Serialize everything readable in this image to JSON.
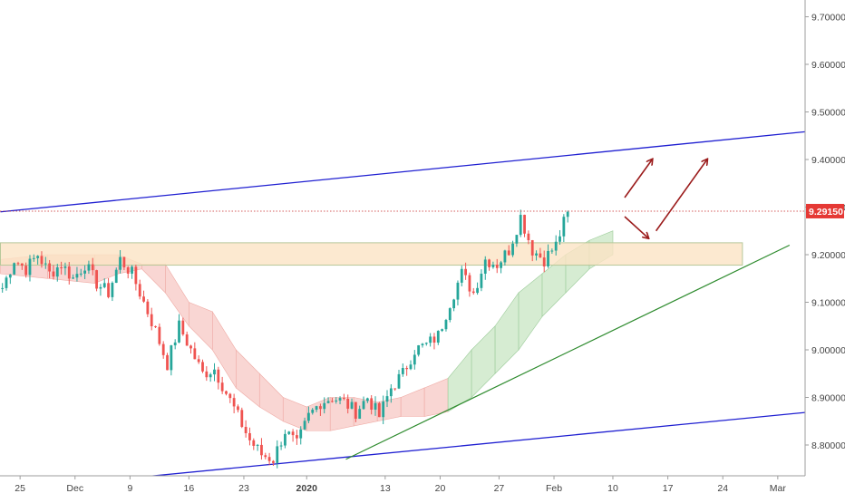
{
  "colors": {
    "up": "#26a69a",
    "down": "#ef5350",
    "channel": "#1f1fd1",
    "trendline": "#2e8b2e",
    "arrow": "#9b1c1c",
    "price_line": "#c62828",
    "price_label_bg": "#e53935",
    "zone_fill": "#fbe3c4",
    "zone_stroke": "#b7c89a",
    "kumo_bull": "#d6ecd2",
    "kumo_bear": "#f9d6d3",
    "axis_text": "#444444",
    "axis_line": "#9e9e9e"
  },
  "chart_data": {
    "type": "candlestick",
    "instrument_note": "",
    "ylim": [
      8.72,
      9.72
    ],
    "y_ticks": [
      "9.70000",
      "9.60000",
      "9.50000",
      "9.40000",
      "9.30000",
      "9.20000",
      "9.10000",
      "9.00000",
      "8.90000",
      "8.80000"
    ],
    "x_ticks": [
      {
        "label": "25",
        "bold": false
      },
      {
        "label": "Dec",
        "bold": false
      },
      {
        "label": "9",
        "bold": false
      },
      {
        "label": "16",
        "bold": false
      },
      {
        "label": "23",
        "bold": false
      },
      {
        "label": "2020",
        "bold": true
      },
      {
        "label": "13",
        "bold": false
      },
      {
        "label": "20",
        "bold": false
      },
      {
        "label": "27",
        "bold": false
      },
      {
        "label": "Feb",
        "bold": false
      },
      {
        "label": "10",
        "bold": false
      },
      {
        "label": "17",
        "bold": false
      },
      {
        "label": "24",
        "bold": false
      },
      {
        "label": "Mar",
        "bold": false
      }
    ],
    "last_price": "9.29150",
    "last_price_value": 9.2915,
    "price_path": [
      [
        0,
        9.13
      ],
      [
        3,
        9.19
      ],
      [
        6,
        9.17
      ],
      [
        9,
        9.2
      ],
      [
        12,
        9.16
      ],
      [
        15,
        9.18
      ],
      [
        18,
        9.15
      ],
      [
        21,
        9.18
      ],
      [
        24,
        9.14
      ],
      [
        27,
        9.12
      ],
      [
        30,
        9.19
      ],
      [
        33,
        9.16
      ],
      [
        36,
        9.1
      ],
      [
        39,
        9.04
      ],
      [
        42,
        8.97
      ],
      [
        45,
        9.05
      ],
      [
        48,
        9.0
      ],
      [
        51,
        8.95
      ],
      [
        54,
        8.96
      ],
      [
        57,
        8.91
      ],
      [
        60,
        8.86
      ],
      [
        63,
        8.81
      ],
      [
        66,
        8.78
      ],
      [
        69,
        8.77
      ],
      [
        72,
        8.83
      ],
      [
        75,
        8.8
      ],
      [
        78,
        8.86
      ],
      [
        81,
        8.89
      ],
      [
        84,
        8.9
      ],
      [
        87,
        8.89
      ],
      [
        90,
        8.87
      ],
      [
        93,
        8.9
      ],
      [
        96,
        8.86
      ],
      [
        99,
        8.92
      ],
      [
        102,
        8.95
      ],
      [
        105,
        9.0
      ],
      [
        108,
        9.01
      ],
      [
        111,
        9.03
      ],
      [
        114,
        9.1
      ],
      [
        117,
        9.16
      ],
      [
        120,
        9.12
      ],
      [
        123,
        9.19
      ],
      [
        126,
        9.18
      ],
      [
        129,
        9.21
      ],
      [
        132,
        9.28
      ],
      [
        135,
        9.21
      ],
      [
        138,
        9.19
      ],
      [
        141,
        9.22
      ],
      [
        144,
        9.29
      ]
    ],
    "candles_per_path_step": 3,
    "ichimoku_cloud": {
      "note": "",
      "points": [
        [
          0,
          9.19,
          9.16
        ],
        [
          12,
          9.2,
          9.15
        ],
        [
          24,
          9.2,
          9.14
        ],
        [
          30,
          9.2,
          9.16
        ],
        [
          36,
          9.18,
          9.17
        ],
        [
          42,
          9.18,
          9.12
        ],
        [
          48,
          9.1,
          9.05
        ],
        [
          54,
          9.08,
          9.0
        ],
        [
          60,
          9.0,
          8.92
        ],
        [
          66,
          8.95,
          8.88
        ],
        [
          72,
          8.9,
          8.85
        ],
        [
          78,
          8.88,
          8.83
        ],
        [
          84,
          8.9,
          8.83
        ],
        [
          90,
          8.9,
          8.84
        ],
        [
          96,
          8.89,
          8.85
        ],
        [
          102,
          8.9,
          8.86
        ],
        [
          108,
          8.92,
          8.86
        ],
        [
          114,
          8.94,
          8.87
        ],
        [
          120,
          9.0,
          8.9
        ],
        [
          126,
          9.05,
          8.95
        ],
        [
          132,
          9.12,
          9.0
        ],
        [
          138,
          9.16,
          9.07
        ],
        [
          144,
          9.2,
          9.12
        ],
        [
          150,
          9.23,
          9.17
        ],
        [
          156,
          9.25,
          9.2
        ]
      ]
    },
    "drawings": {
      "resistance_zone": {
        "from_bar": 0,
        "to_bar": 189,
        "top": 9.225,
        "bottom": 9.178
      },
      "channel_upper": {
        "x1": 0,
        "y1": 9.29,
        "x2": 207,
        "y2": 9.46
      },
      "channel_lower": {
        "x1": 20,
        "y1": 8.72,
        "x2": 207,
        "y2": 8.87
      },
      "trendline": {
        "x1": 88,
        "y1": 8.77,
        "x2": 201,
        "y2": 9.22
      },
      "arrows": [
        {
          "x1": 159,
          "y1": 9.32,
          "x2": 166,
          "y2": 9.4
        },
        {
          "x1": 159,
          "y1": 9.28,
          "x2": 165,
          "y2": 9.235
        },
        {
          "x1": 167,
          "y1": 9.25,
          "x2": 180,
          "y2": 9.4
        }
      ]
    }
  }
}
